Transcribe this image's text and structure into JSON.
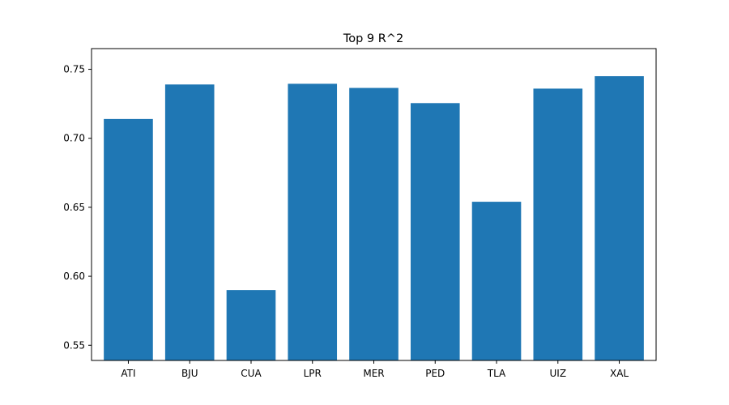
{
  "chart_data": {
    "type": "bar",
    "title": "Top 9 R^2",
    "xlabel": "",
    "ylabel": "",
    "categories": [
      "ATI",
      "BJU",
      "CUA",
      "LPR",
      "MER",
      "PED",
      "TLA",
      "UIZ",
      "XAL"
    ],
    "values": [
      0.714,
      0.739,
      0.59,
      0.7395,
      0.7365,
      0.7255,
      0.654,
      0.736,
      0.745
    ],
    "ylim": [
      0.539,
      0.765
    ],
    "yticks": [
      0.55,
      0.6,
      0.65,
      0.7,
      0.75
    ],
    "ytick_labels": [
      "0.55",
      "0.60",
      "0.65",
      "0.70",
      "0.75"
    ],
    "bar_color": "#1f77b4",
    "grid": false,
    "legend": "none"
  }
}
